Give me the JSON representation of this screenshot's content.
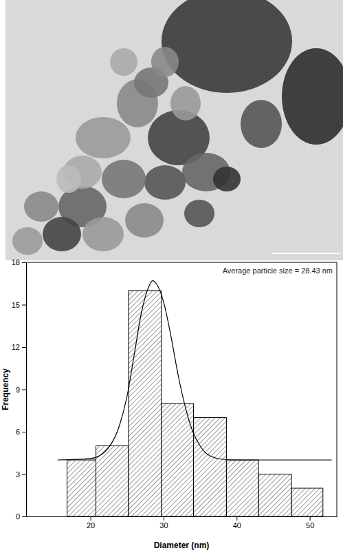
{
  "chart_data": {
    "type": "histogram",
    "x_label": "Diameter (nm)",
    "y_label": "Frequency",
    "annotation": "Average particle size = 28.43 nm",
    "bins": [
      16.8,
      20.75,
      25.2,
      29.7,
      34.1,
      38.6,
      43.0,
      47.5,
      51.8
    ],
    "values": [
      4,
      5,
      16,
      8,
      7,
      4,
      3,
      2
    ],
    "color": "#000000",
    "xlim": [
      11.2,
      53.7
    ],
    "xticks": [
      20,
      30,
      40,
      50
    ],
    "ylim": [
      0,
      18
    ],
    "yticks": [
      0,
      3,
      6,
      9,
      12,
      15,
      18
    ],
    "series": [
      {
        "type": "line",
        "color": "#000000",
        "x": [
          15.5,
          20,
          22,
          24,
          25,
          26,
          27,
          28,
          28.5,
          29,
          30,
          31,
          32,
          33,
          34,
          35,
          36,
          38,
          40,
          45,
          53
        ],
        "values": [
          4.0,
          4.1,
          4.6,
          6.5,
          8.5,
          11.5,
          14.5,
          16.3,
          16.7,
          16.5,
          15.2,
          12.8,
          10.0,
          7.7,
          6.0,
          5.0,
          4.4,
          4.05,
          4.0,
          4.0,
          4.0
        ]
      }
    ]
  }
}
